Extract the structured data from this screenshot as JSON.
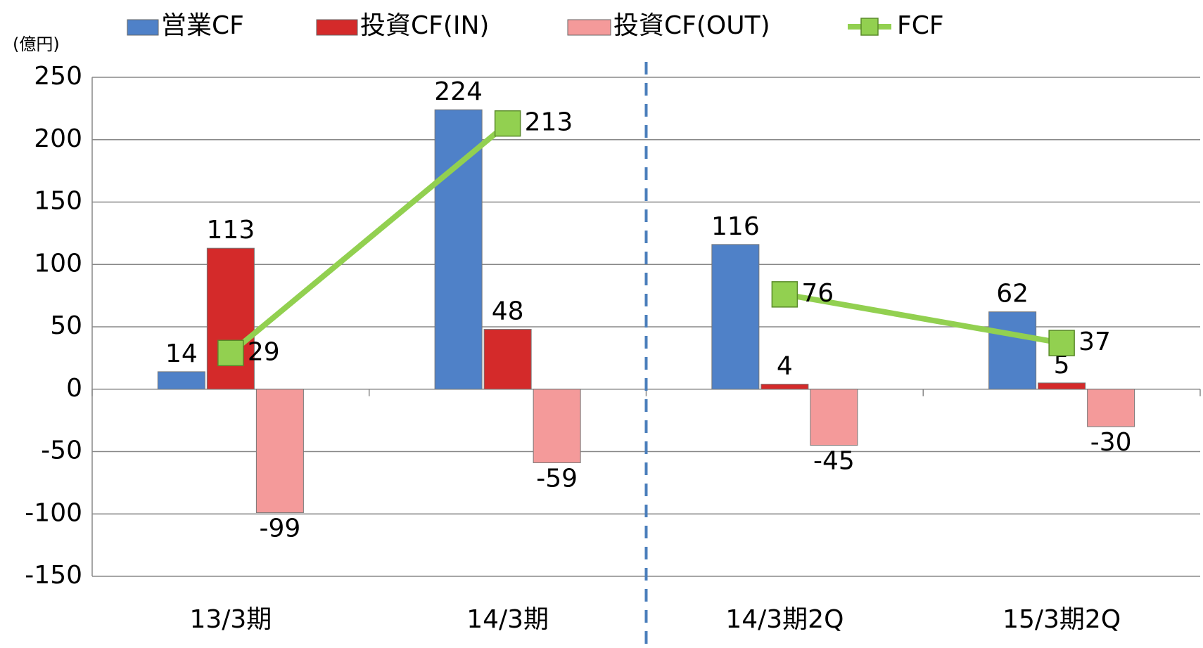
{
  "chart_data": {
    "type": "bar",
    "y_label": "(億円)",
    "categories": [
      "13/3期",
      "14/3期",
      "14/3期2Q",
      "15/3期2Q"
    ],
    "series": [
      {
        "name": "営業CF",
        "color": "#4f81c8",
        "values": [
          14,
          224,
          116,
          62
        ]
      },
      {
        "name": "投資CF(IN)",
        "color": "#d42a2a",
        "values": [
          113,
          48,
          4,
          5
        ]
      },
      {
        "name": "投資CF(OUT)",
        "color": "#f49a9a",
        "values": [
          -99,
          -59,
          -45,
          -30
        ]
      },
      {
        "name": "FCF",
        "type": "line",
        "color": "#92d050",
        "values": [
          29,
          213,
          76,
          37
        ]
      }
    ],
    "separator": {
      "after": 1,
      "style": "dashed",
      "color": "#4a7ebb"
    },
    "ylim": [
      -150,
      250
    ],
    "yticks": [
      -150,
      -100,
      -50,
      0,
      50,
      100,
      150,
      200,
      250
    ],
    "grid": true
  }
}
